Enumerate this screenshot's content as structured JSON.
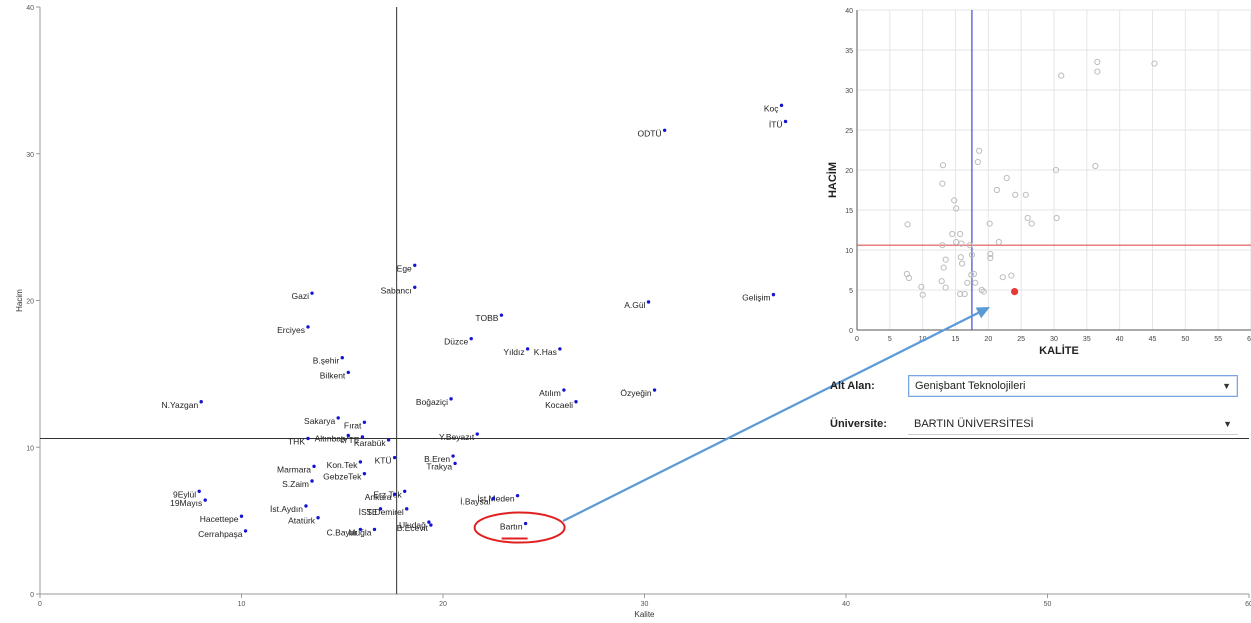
{
  "chart_data": [
    {
      "type": "scatter",
      "title": "",
      "xlabel": "Kalite",
      "ylabel": "Hacim",
      "xlim": [
        0,
        60
      ],
      "ylim": [
        0,
        40
      ],
      "xticks": [
        "0",
        "10",
        "20",
        "30",
        "40",
        "50",
        "60"
      ],
      "yticks": [
        "0",
        "10",
        "20",
        "30",
        "40"
      ],
      "ref_x": 17.7,
      "ref_y": 10.6,
      "points": [
        {
          "label": "Koç",
          "x": 36.8,
          "y": 33.3
        },
        {
          "label": "İTÜ",
          "x": 37.0,
          "y": 32.2
        },
        {
          "label": "ODTÜ",
          "x": 31.0,
          "y": 31.6
        },
        {
          "label": "Ege",
          "x": 18.6,
          "y": 22.4
        },
        {
          "label": "Sabancı",
          "x": 18.6,
          "y": 20.9
        },
        {
          "label": "Gazi",
          "x": 13.5,
          "y": 20.5
        },
        {
          "label": "A.Gül",
          "x": 30.2,
          "y": 19.9
        },
        {
          "label": "Gelişim",
          "x": 36.4,
          "y": 20.4
        },
        {
          "label": "TOBB",
          "x": 22.9,
          "y": 19.0
        },
        {
          "label": "Erciyes",
          "x": 13.3,
          "y": 18.2
        },
        {
          "label": "Düzce",
          "x": 21.4,
          "y": 17.4
        },
        {
          "label": "B.şehir",
          "x": 15.0,
          "y": 16.1
        },
        {
          "label": "Yıldız",
          "x": 24.2,
          "y": 16.7
        },
        {
          "label": "K.Has",
          "x": 25.8,
          "y": 16.7
        },
        {
          "label": "Bilkent",
          "x": 15.3,
          "y": 15.1
        },
        {
          "label": "Atılım",
          "x": 26.0,
          "y": 13.9
        },
        {
          "label": "Özyeğin",
          "x": 30.5,
          "y": 13.9
        },
        {
          "label": "Boğaziçi",
          "x": 20.4,
          "y": 13.3
        },
        {
          "label": "N.Yazgan",
          "x": 8.0,
          "y": 13.1
        },
        {
          "label": "Kocaeli",
          "x": 26.6,
          "y": 13.1
        },
        {
          "label": "Sakarya",
          "x": 14.8,
          "y": 12.0
        },
        {
          "label": "Fırat",
          "x": 16.1,
          "y": 11.7
        },
        {
          "label": "Altınbaş",
          "x": 15.3,
          "y": 10.8
        },
        {
          "label": "Karabük",
          "x": 17.3,
          "y": 10.5
        },
        {
          "label": "Y.Beyazıt",
          "x": 21.7,
          "y": 10.9
        },
        {
          "label": "THK",
          "x": 13.3,
          "y": 10.6
        },
        {
          "label": "İYTE",
          "x": 16.0,
          "y": 10.7
        },
        {
          "label": "B.Eren",
          "x": 20.5,
          "y": 9.4
        },
        {
          "label": "Kon.Tek",
          "x": 15.9,
          "y": 9.0
        },
        {
          "label": "Trakya",
          "x": 20.6,
          "y": 8.9
        },
        {
          "label": "KTÜ",
          "x": 17.6,
          "y": 9.3
        },
        {
          "label": "Marmara",
          "x": 13.6,
          "y": 8.7
        },
        {
          "label": "GebzeTek",
          "x": 16.1,
          "y": 8.2
        },
        {
          "label": "9Eylül",
          "x": 7.9,
          "y": 7.0
        },
        {
          "label": "Erz.Tek",
          "x": 18.1,
          "y": 7.0
        },
        {
          "label": "S.Zaim",
          "x": 13.5,
          "y": 7.7
        },
        {
          "label": "Ankara",
          "x": 17.6,
          "y": 6.8
        },
        {
          "label": "İst.Meden",
          "x": 23.7,
          "y": 6.7
        },
        {
          "label": "19Mayıs",
          "x": 8.2,
          "y": 6.4
        },
        {
          "label": "İst.Aydın",
          "x": 13.2,
          "y": 6.0
        },
        {
          "label": "İSTE",
          "x": 16.9,
          "y": 5.8
        },
        {
          "label": "S.Demirel",
          "x": 18.2,
          "y": 5.8
        },
        {
          "label": "İ.Baysal",
          "x": 22.5,
          "y": 6.5
        },
        {
          "label": "Hacettepe",
          "x": 10.0,
          "y": 5.3
        },
        {
          "label": "Atatürk",
          "x": 13.8,
          "y": 5.2
        },
        {
          "label": "Uludağ",
          "x": 19.3,
          "y": 4.9
        },
        {
          "label": "C.Bayar",
          "x": 15.9,
          "y": 4.4
        },
        {
          "label": "Bartın",
          "x": 24.1,
          "y": 4.8
        },
        {
          "label": "B.Ecevit",
          "x": 19.4,
          "y": 4.7
        },
        {
          "label": "Cerrahpaşa",
          "x": 10.2,
          "y": 4.3
        },
        {
          "label": "Muğla",
          "x": 16.6,
          "y": 4.4
        }
      ],
      "highlight": "Bartın",
      "colors": {
        "points": "#1414d2",
        "axis": "#333333",
        "annotation": "#e02020",
        "arrow": "#5b9bd5"
      }
    },
    {
      "type": "scatter",
      "title": "",
      "xlabel": "KALİTE",
      "ylabel": "HACİM",
      "xlim": [
        0,
        60
      ],
      "ylim": [
        0,
        40
      ],
      "xticks": [
        "0",
        "5",
        "10",
        "15",
        "20",
        "25",
        "30",
        "35",
        "40",
        "45",
        "50",
        "55",
        "60"
      ],
      "yticks": [
        "0",
        "5",
        "10",
        "15",
        "20",
        "25",
        "30",
        "35",
        "40"
      ],
      "grid": true,
      "ref_x": 17.5,
      "ref_y": 10.6,
      "points": [
        {
          "x": 45.3,
          "y": 33.3
        },
        {
          "x": 36.6,
          "y": 33.5
        },
        {
          "x": 36.6,
          "y": 32.3
        },
        {
          "x": 31.1,
          "y": 31.8
        },
        {
          "x": 18.6,
          "y": 22.4
        },
        {
          "x": 18.4,
          "y": 21.0
        },
        {
          "x": 13.1,
          "y": 20.6
        },
        {
          "x": 30.3,
          "y": 20.0
        },
        {
          "x": 36.3,
          "y": 20.5
        },
        {
          "x": 22.8,
          "y": 19.0
        },
        {
          "x": 13.0,
          "y": 18.3
        },
        {
          "x": 21.3,
          "y": 17.5
        },
        {
          "x": 24.1,
          "y": 16.9
        },
        {
          "x": 25.7,
          "y": 16.9
        },
        {
          "x": 14.8,
          "y": 16.2
        },
        {
          "x": 15.1,
          "y": 15.2
        },
        {
          "x": 26.0,
          "y": 14.0
        },
        {
          "x": 30.4,
          "y": 14.0
        },
        {
          "x": 26.6,
          "y": 13.3
        },
        {
          "x": 20.2,
          "y": 13.3
        },
        {
          "x": 7.7,
          "y": 13.2
        },
        {
          "x": 15.7,
          "y": 12.0
        },
        {
          "x": 14.5,
          "y": 12.0
        },
        {
          "x": 15.1,
          "y": 11.0
        },
        {
          "x": 17.2,
          "y": 10.6
        },
        {
          "x": 21.6,
          "y": 11.0
        },
        {
          "x": 13.0,
          "y": 10.6
        },
        {
          "x": 15.9,
          "y": 10.8
        },
        {
          "x": 20.3,
          "y": 9.5
        },
        {
          "x": 15.8,
          "y": 9.1
        },
        {
          "x": 20.3,
          "y": 9.0
        },
        {
          "x": 17.5,
          "y": 9.4
        },
        {
          "x": 13.5,
          "y": 8.8
        },
        {
          "x": 16.0,
          "y": 8.3
        },
        {
          "x": 7.6,
          "y": 7.0
        },
        {
          "x": 17.8,
          "y": 7.0
        },
        {
          "x": 13.2,
          "y": 7.8
        },
        {
          "x": 17.4,
          "y": 6.9
        },
        {
          "x": 23.5,
          "y": 6.8
        },
        {
          "x": 7.9,
          "y": 6.5
        },
        {
          "x": 12.9,
          "y": 6.1
        },
        {
          "x": 16.8,
          "y": 5.9
        },
        {
          "x": 18.0,
          "y": 5.9
        },
        {
          "x": 22.2,
          "y": 6.6
        },
        {
          "x": 9.8,
          "y": 5.4
        },
        {
          "x": 13.5,
          "y": 5.3
        },
        {
          "x": 19.0,
          "y": 5.0
        },
        {
          "x": 15.7,
          "y": 4.5
        },
        {
          "x": 19.3,
          "y": 4.8
        },
        {
          "x": 10.0,
          "y": 4.4
        },
        {
          "x": 16.4,
          "y": 4.5
        }
      ],
      "highlight_point": {
        "x": 24.0,
        "y": 4.8
      },
      "colors": {
        "points": "#bdbdbd",
        "highlight": "#e53935",
        "ref_x": "#3a4fd0",
        "ref_y": "#e05555",
        "grid": "#e6e6e6"
      }
    }
  ],
  "filters": {
    "alt_alan_label": "Alt Alan:",
    "alt_alan_value": "Genişbant Teknolojileri",
    "universite_label": "Üniversite:",
    "universite_value": "BARTIN ÜNİVERSİTESİ"
  },
  "icons": {
    "dropdown": "caret-down-icon"
  }
}
